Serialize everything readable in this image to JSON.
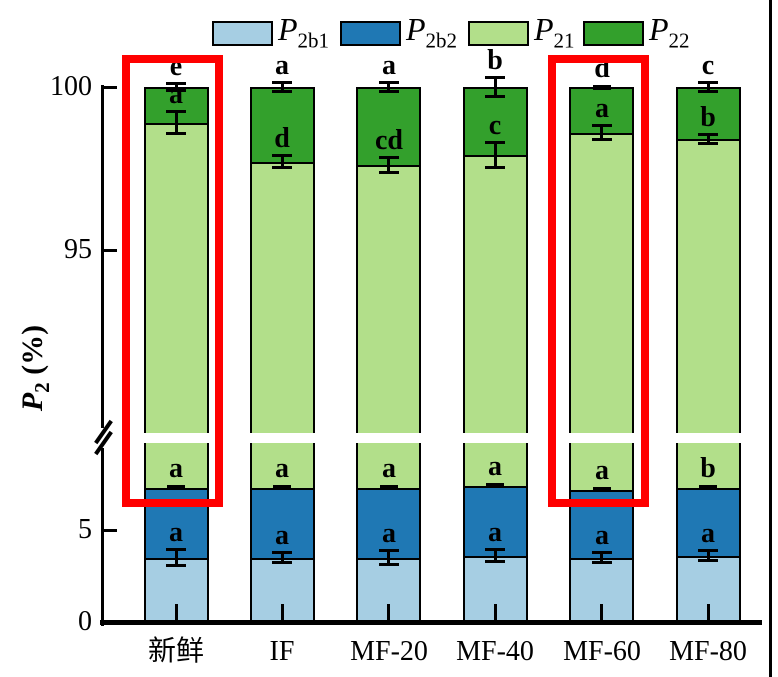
{
  "chart_data": {
    "type": "bar",
    "stacked": true,
    "broken_y_axis": true,
    "ylabel": {
      "var": "P",
      "sub": "2",
      "unit": "(%)"
    },
    "categories": [
      "新鲜",
      "IF",
      "MF-20",
      "MF-40",
      "MF-60",
      "MF-80"
    ],
    "axis": {
      "y_ticks_low": [
        0,
        5
      ],
      "y_ticks_high": [
        95,
        100
      ],
      "y_break": {
        "low_max": 8.2,
        "high_min": 89.5
      },
      "ylim": [
        0,
        100.5
      ],
      "grid": false
    },
    "legend": [
      {
        "var": "P",
        "sub": "2b1",
        "color": "#a6cee3"
      },
      {
        "var": "P",
        "sub": "2b2",
        "color": "#1f78b4"
      },
      {
        "var": "P",
        "sub": "21",
        "color": "#b2df8a"
      },
      {
        "var": "P",
        "sub": "22",
        "color": "#33a02c"
      }
    ],
    "series": [
      {
        "name": "P_2b1",
        "color": "#a6cee3",
        "values": [
          3.5,
          3.5,
          3.5,
          3.6,
          3.5,
          3.6
        ]
      },
      {
        "name": "P_2b2",
        "color": "#1f78b4",
        "values": [
          3.8,
          3.8,
          3.8,
          3.8,
          3.7,
          3.7
        ]
      },
      {
        "name": "P_21",
        "color": "#b2df8a",
        "values": [
          91.6,
          90.4,
          90.3,
          90.5,
          91.4,
          91.1
        ]
      },
      {
        "name": "P_22",
        "color": "#33a02c",
        "values": [
          1.1,
          2.3,
          2.4,
          2.1,
          1.4,
          1.6
        ]
      }
    ],
    "bars": [
      {
        "category": "新鲜",
        "cum": {
          "b1": 3.5,
          "b2": 7.3,
          "p21": 98.9,
          "total": 100
        },
        "letters": {
          "b1": "a",
          "b2": "a",
          "p21": "a",
          "total": "e"
        },
        "err": {
          "b1": 0.45,
          "b2": 0.08,
          "p21": 0.35,
          "total": 0.12
        },
        "highlighted": true
      },
      {
        "category": "IF",
        "cum": {
          "b1": 3.5,
          "b2": 7.3,
          "p21": 97.7,
          "total": 100
        },
        "letters": {
          "b1": "a",
          "b2": "a",
          "p21": "d",
          "total": "a"
        },
        "err": {
          "b1": 0.3,
          "b2": 0.08,
          "p21": 0.2,
          "total": 0.15
        },
        "highlighted": false
      },
      {
        "category": "MF-20",
        "cum": {
          "b1": 3.5,
          "b2": 7.3,
          "p21": 97.6,
          "total": 100
        },
        "letters": {
          "b1": "a",
          "b2": "a",
          "p21": "cd",
          "total": "a"
        },
        "err": {
          "b1": 0.4,
          "b2": 0.08,
          "p21": 0.25,
          "total": 0.15
        },
        "highlighted": false
      },
      {
        "category": "MF-40",
        "cum": {
          "b1": 3.6,
          "b2": 7.4,
          "p21": 97.9,
          "total": 100
        },
        "letters": {
          "b1": "a",
          "b2": "a",
          "p21": "c",
          "total": "b"
        },
        "err": {
          "b1": 0.35,
          "b2": 0.08,
          "p21": 0.4,
          "total": 0.3
        },
        "highlighted": false
      },
      {
        "category": "MF-60",
        "cum": {
          "b1": 3.5,
          "b2": 7.2,
          "p21": 98.6,
          "total": 100
        },
        "letters": {
          "b1": "a",
          "b2": "a",
          "p21": "a",
          "total": "d"
        },
        "err": {
          "b1": 0.3,
          "b2": 0.08,
          "p21": 0.22,
          "total": 0.04
        },
        "highlighted": true
      },
      {
        "category": "MF-80",
        "cum": {
          "b1": 3.6,
          "b2": 7.3,
          "p21": 98.4,
          "total": 100
        },
        "letters": {
          "b1": "a",
          "b2": "b",
          "p21": "b",
          "total": "c"
        },
        "err": {
          "b1": 0.3,
          "b2": 0.08,
          "p21": 0.15,
          "total": 0.15
        },
        "highlighted": false
      }
    ],
    "highlight": {
      "color": "#ff0000",
      "targets": [
        "新鲜",
        "MF-60"
      ]
    },
    "segment_border_color": "#000000"
  }
}
